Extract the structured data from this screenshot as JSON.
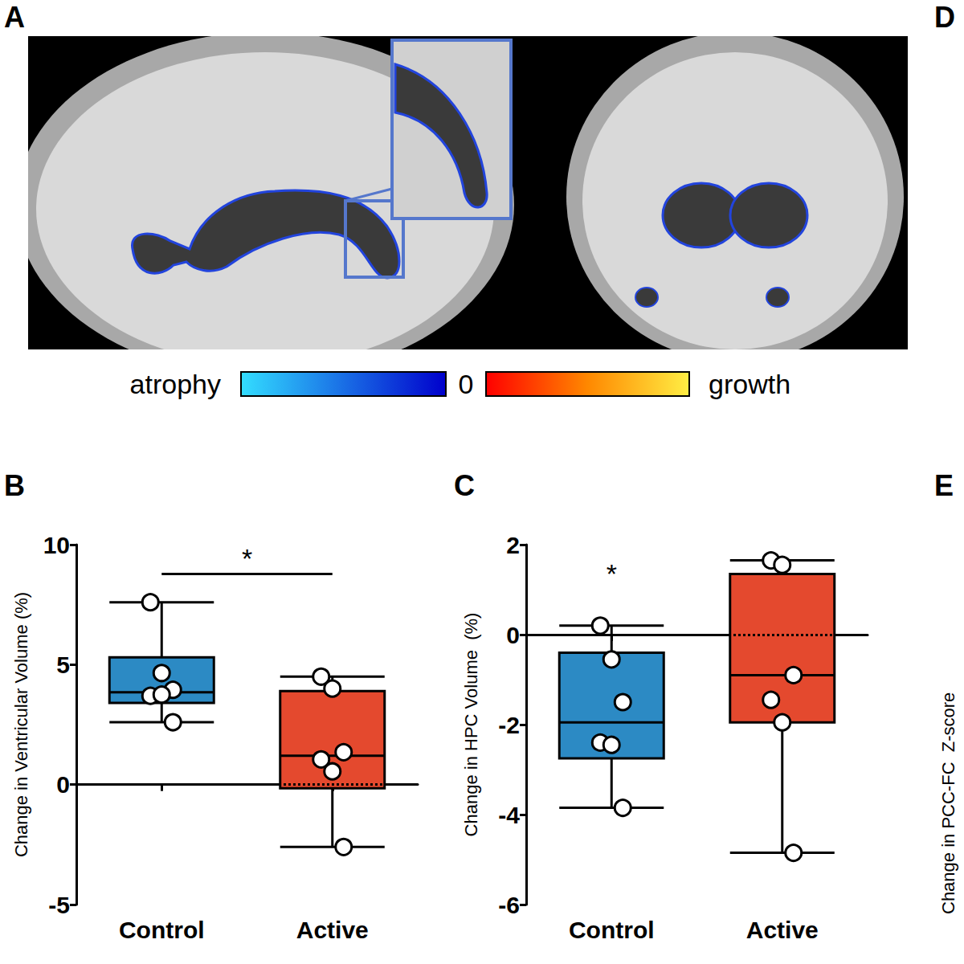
{
  "image_panel": {
    "letter": "A",
    "colorbar": {
      "low": "atrophy",
      "zero": 0,
      "high": "growth"
    }
  },
  "other_panels": [
    {
      "letter": "D"
    },
    {
      "letter": "E",
      "y_label": "Change in PCC-FC  Z-score"
    }
  ],
  "chart_data": [
    {
      "type": "boxplot",
      "panel": "B",
      "y_label": "Change in Ventricular Volume (%)",
      "categories": [
        "Control",
        "Active"
      ],
      "boxes": [
        [
          2.6,
          3.4,
          3.85,
          5.3,
          7.6
        ],
        [
          -2.6,
          -0.15,
          1.2,
          3.9,
          4.5
        ]
      ],
      "points": [
        [
          7.6,
          4.65,
          3.95,
          3.7,
          3.75,
          2.6
        ],
        [
          4.5,
          4.0,
          1.35,
          1.05,
          0.55,
          -2.6
        ]
      ],
      "colors": [
        "#2c8ac4",
        "#e4492e"
      ],
      "ylim": [
        -5,
        10
      ],
      "yticks": [
        -5,
        0,
        5,
        10
      ],
      "grid": false,
      "reference_line": 0,
      "annotations": [
        {
          "text": "*",
          "between": [
            "Control",
            "Active"
          ],
          "y": 8.8
        }
      ]
    },
    {
      "type": "boxplot",
      "panel": "C",
      "y_label": "Change in HPC Volume  (%)",
      "categories": [
        "Control",
        "Active"
      ],
      "boxes": [
        [
          -3.85,
          -2.75,
          -1.95,
          -0.4,
          0.2
        ],
        [
          -4.85,
          -1.95,
          -0.9,
          1.35,
          1.65
        ]
      ],
      "points": [
        [
          0.2,
          -0.55,
          -1.5,
          -2.4,
          -2.45,
          -3.85
        ],
        [
          1.65,
          1.55,
          -0.9,
          -1.45,
          -1.95,
          -4.85
        ]
      ],
      "colors": [
        "#2c8ac4",
        "#e4492e"
      ],
      "ylim": [
        -6,
        2
      ],
      "yticks": [
        -6,
        -4,
        -2,
        0,
        2
      ],
      "grid": false,
      "reference_line": 0,
      "annotations": [
        {
          "text": "*",
          "category": "Control",
          "y": 1.35
        }
      ]
    }
  ]
}
